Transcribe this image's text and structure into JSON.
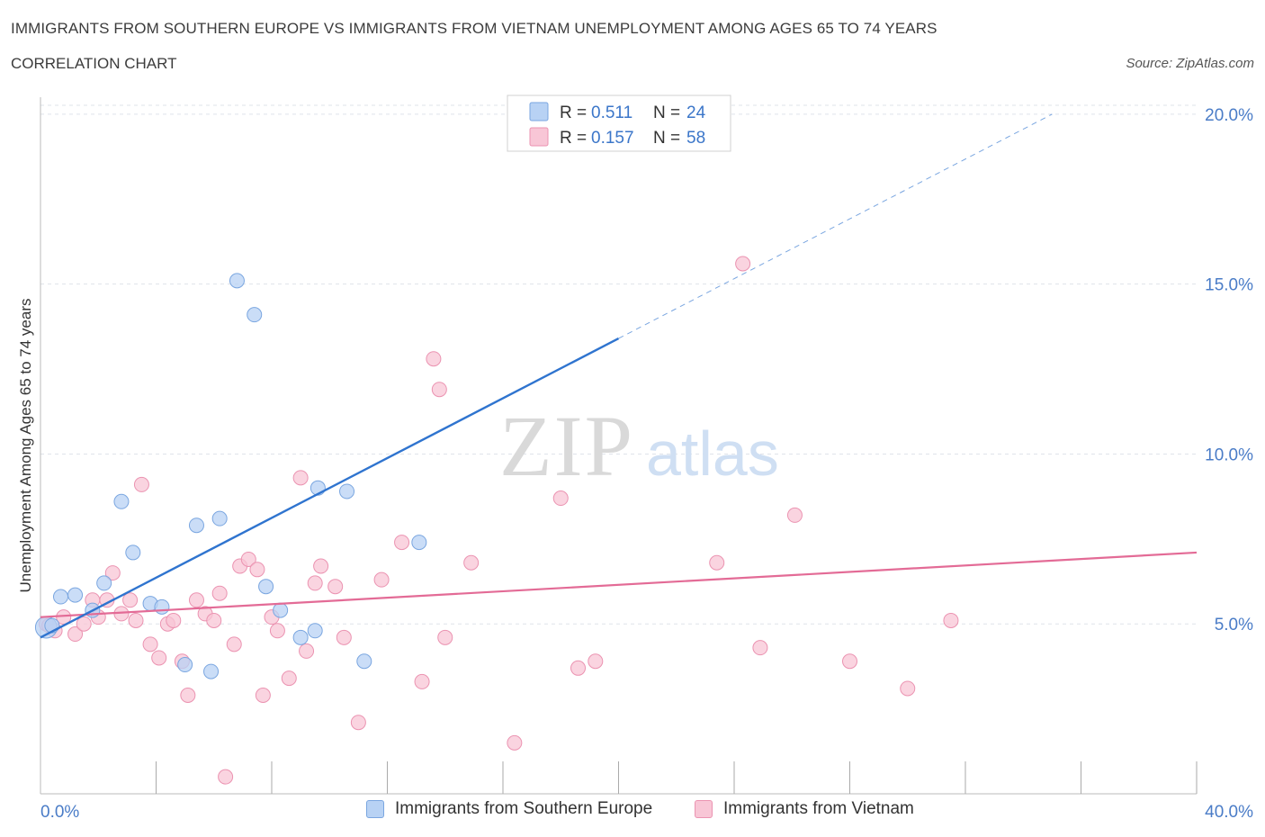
{
  "header": {
    "title": "IMMIGRANTS FROM SOUTHERN EUROPE VS IMMIGRANTS FROM VIETNAM UNEMPLOYMENT AMONG AGES 65 TO 74 YEARS",
    "subtitle": "CORRELATION CHART",
    "source": "Source: ZipAtlas.com"
  },
  "watermark": {
    "zip": "ZIP",
    "atlas": "atlas"
  },
  "legend": {
    "r_label": "R =",
    "n_label": "N =",
    "series": [
      {
        "r": "0.511",
        "n": "24"
      },
      {
        "r": "0.157",
        "n": "58"
      }
    ]
  },
  "colors": {
    "blue_fill": "#b8d2f4",
    "blue_stroke": "#7aa6e0",
    "blue_line": "#2f74cf",
    "pink_fill": "#f8c6d6",
    "pink_stroke": "#eb93b1",
    "pink_line": "#e36b96",
    "tick_label": "#4a7cc7",
    "grid": "#dfe3ea"
  },
  "chart_data": {
    "type": "scatter",
    "title": "IMMIGRANTS FROM SOUTHERN EUROPE VS IMMIGRANTS FROM VIETNAM UNEMPLOYMENT AMONG AGES 65 TO 74 YEARS",
    "xlabel": "",
    "ylabel": "Unemployment Among Ages 65 to 74 years",
    "xlim": [
      0,
      40
    ],
    "ylim": [
      0,
      20.5
    ],
    "x_tick_labels": [
      "0.0%",
      "40.0%"
    ],
    "y_ticks": [
      5,
      10,
      15,
      20
    ],
    "y_tick_labels": [
      "5.0%",
      "10.0%",
      "15.0%",
      "20.0%"
    ],
    "grid": true,
    "series": [
      {
        "name": "Immigrants from Southern Europe",
        "r": 0.511,
        "n": 24,
        "trend": {
          "x0": 0,
          "y0": 4.6,
          "x1": 20,
          "y1": 13.4,
          "dashed_to_x": 35,
          "dashed_to_y": 20.0
        },
        "points": [
          {
            "x": 0.2,
            "y": 4.9
          },
          {
            "x": 0.4,
            "y": 4.95
          },
          {
            "x": 0.7,
            "y": 5.8
          },
          {
            "x": 1.2,
            "y": 5.85
          },
          {
            "x": 1.8,
            "y": 5.4
          },
          {
            "x": 2.2,
            "y": 6.2
          },
          {
            "x": 2.8,
            "y": 8.6
          },
          {
            "x": 3.2,
            "y": 7.1
          },
          {
            "x": 3.8,
            "y": 5.6
          },
          {
            "x": 4.2,
            "y": 5.5
          },
          {
            "x": 5.0,
            "y": 3.8
          },
          {
            "x": 5.4,
            "y": 7.9
          },
          {
            "x": 5.9,
            "y": 3.6
          },
          {
            "x": 6.2,
            "y": 8.1
          },
          {
            "x": 6.8,
            "y": 15.1
          },
          {
            "x": 7.4,
            "y": 14.1
          },
          {
            "x": 7.8,
            "y": 6.1
          },
          {
            "x": 8.3,
            "y": 5.4
          },
          {
            "x": 9.0,
            "y": 4.6
          },
          {
            "x": 9.5,
            "y": 4.8
          },
          {
            "x": 9.6,
            "y": 9.0
          },
          {
            "x": 10.6,
            "y": 8.9
          },
          {
            "x": 11.2,
            "y": 3.9
          },
          {
            "x": 13.1,
            "y": 7.4
          }
        ]
      },
      {
        "name": "Immigrants from Vietnam",
        "r": 0.157,
        "n": 58,
        "trend": {
          "x0": 0,
          "y0": 5.2,
          "x1": 40,
          "y1": 7.1
        },
        "points": [
          {
            "x": 0.2,
            "y": 5.0
          },
          {
            "x": 0.5,
            "y": 4.8
          },
          {
            "x": 0.8,
            "y": 5.2
          },
          {
            "x": 1.2,
            "y": 4.7
          },
          {
            "x": 1.5,
            "y": 5.0
          },
          {
            "x": 1.8,
            "y": 5.7
          },
          {
            "x": 2.0,
            "y": 5.2
          },
          {
            "x": 2.3,
            "y": 5.7
          },
          {
            "x": 2.5,
            "y": 6.5
          },
          {
            "x": 2.8,
            "y": 5.3
          },
          {
            "x": 3.1,
            "y": 5.7
          },
          {
            "x": 3.3,
            "y": 5.1
          },
          {
            "x": 3.5,
            "y": 9.1
          },
          {
            "x": 3.8,
            "y": 4.4
          },
          {
            "x": 4.1,
            "y": 4.0
          },
          {
            "x": 4.4,
            "y": 5.0
          },
          {
            "x": 4.6,
            "y": 5.1
          },
          {
            "x": 4.9,
            "y": 3.9
          },
          {
            "x": 5.1,
            "y": 2.9
          },
          {
            "x": 5.4,
            "y": 5.7
          },
          {
            "x": 5.7,
            "y": 5.3
          },
          {
            "x": 6.0,
            "y": 5.1
          },
          {
            "x": 6.2,
            "y": 5.9
          },
          {
            "x": 6.4,
            "y": 0.5
          },
          {
            "x": 6.7,
            "y": 4.4
          },
          {
            "x": 6.9,
            "y": 6.7
          },
          {
            "x": 7.2,
            "y": 6.9
          },
          {
            "x": 7.5,
            "y": 6.6
          },
          {
            "x": 7.7,
            "y": 2.9
          },
          {
            "x": 8.0,
            "y": 5.2
          },
          {
            "x": 8.2,
            "y": 4.8
          },
          {
            "x": 8.6,
            "y": 3.4
          },
          {
            "x": 9.0,
            "y": 9.3
          },
          {
            "x": 9.2,
            "y": 4.2
          },
          {
            "x": 9.5,
            "y": 6.2
          },
          {
            "x": 9.7,
            "y": 6.7
          },
          {
            "x": 10.2,
            "y": 6.1
          },
          {
            "x": 10.5,
            "y": 4.6
          },
          {
            "x": 11.0,
            "y": 2.1
          },
          {
            "x": 11.8,
            "y": 6.3
          },
          {
            "x": 12.5,
            "y": 7.4
          },
          {
            "x": 13.2,
            "y": 3.3
          },
          {
            "x": 13.6,
            "y": 12.8
          },
          {
            "x": 13.8,
            "y": 11.9
          },
          {
            "x": 14.0,
            "y": 4.6
          },
          {
            "x": 14.9,
            "y": 6.8
          },
          {
            "x": 16.4,
            "y": 1.5
          },
          {
            "x": 18.0,
            "y": 8.7
          },
          {
            "x": 18.6,
            "y": 3.7
          },
          {
            "x": 19.2,
            "y": 3.9
          },
          {
            "x": 23.4,
            "y": 6.8
          },
          {
            "x": 24.3,
            "y": 15.6
          },
          {
            "x": 24.9,
            "y": 4.3
          },
          {
            "x": 26.1,
            "y": 8.2
          },
          {
            "x": 28.0,
            "y": 3.9
          },
          {
            "x": 30.0,
            "y": 3.1
          },
          {
            "x": 31.5,
            "y": 5.1
          },
          {
            "x": 0.3,
            "y": 4.95
          }
        ]
      }
    ],
    "legend_position": "top-center"
  }
}
